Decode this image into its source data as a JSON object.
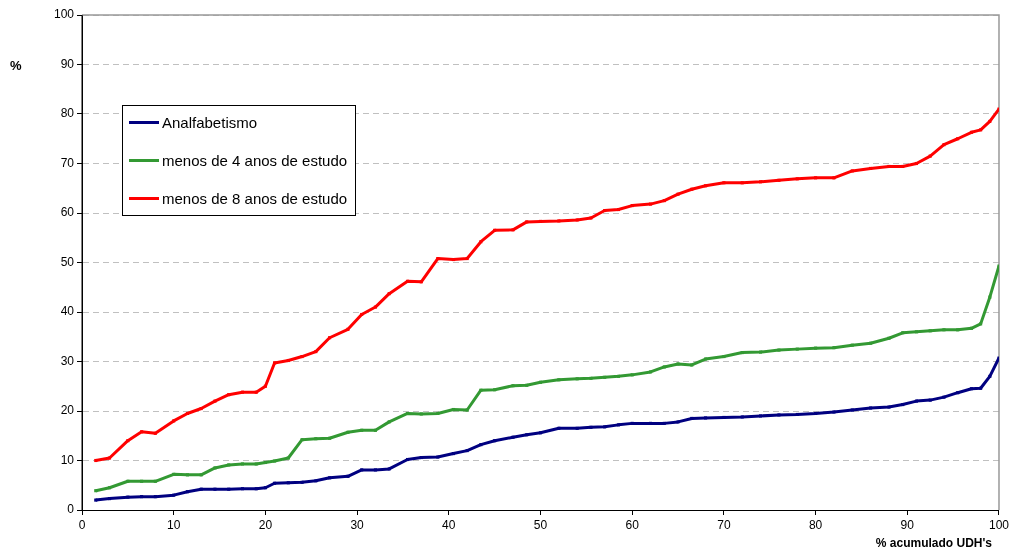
{
  "chart_data": {
    "type": "line",
    "ylabel": "%",
    "xlabel": "% acumulado UDH's",
    "x": [
      1.5,
      3,
      5,
      6.5,
      8,
      10,
      11.5,
      13,
      14.5,
      16,
      17.5,
      19,
      20,
      21,
      22.5,
      24,
      25.5,
      27,
      29,
      30.5,
      32,
      33.5,
      35.5,
      37,
      38.8,
      40.5,
      42,
      43.5,
      45,
      47,
      48.5,
      50,
      52,
      54,
      55.5,
      57,
      58.5,
      60,
      62,
      63.5,
      65,
      66.5,
      68,
      70,
      72,
      74,
      76,
      78,
      80,
      82,
      84,
      86,
      88,
      89.5,
      91,
      92.5,
      94,
      95.5,
      97,
      98,
      99,
      100
    ],
    "series": [
      {
        "name": "Analfabetismo",
        "color": "#000080",
        "values": [
          2,
          2.3,
          2.6,
          2.7,
          2.7,
          3,
          3.7,
          4.2,
          4.2,
          4.2,
          4.3,
          4.3,
          4.5,
          5.4,
          5.5,
          5.6,
          5.9,
          6.5,
          6.8,
          8.1,
          8.1,
          8.3,
          10.2,
          10.6,
          10.7,
          11.4,
          12,
          13.2,
          14,
          14.7,
          15.2,
          15.6,
          16.5,
          16.5,
          16.7,
          16.8,
          17.2,
          17.5,
          17.5,
          17.5,
          17.8,
          18.5,
          18.6,
          18.7,
          18.8,
          19,
          19.2,
          19.3,
          19.5,
          19.8,
          20.2,
          20.6,
          20.8,
          21.3,
          22,
          22.2,
          22.8,
          23.7,
          24.5,
          24.6,
          27,
          30.7
        ]
      },
      {
        "name": "menos de 4 anos de estudo",
        "color": "#339933",
        "values": [
          3.9,
          4.5,
          5.8,
          5.8,
          5.8,
          7.2,
          7.1,
          7.1,
          8.5,
          9.1,
          9.3,
          9.3,
          9.6,
          9.9,
          10.5,
          14.2,
          14.4,
          14.5,
          15.7,
          16.1,
          16.1,
          17.8,
          19.5,
          19.4,
          19.5,
          20.3,
          20.2,
          24.2,
          24.3,
          25.1,
          25.2,
          25.8,
          26.3,
          26.5,
          26.6,
          26.8,
          27,
          27.3,
          27.9,
          28.9,
          29.5,
          29.3,
          30.5,
          31,
          31.8,
          31.9,
          32.3,
          32.5,
          32.7,
          32.8,
          33.3,
          33.7,
          34.7,
          35.8,
          36,
          36.2,
          36.4,
          36.4,
          36.7,
          37.6,
          43,
          49.3
        ]
      },
      {
        "name": "menos de 8 anos de estudo",
        "color": "#ff0000",
        "values": [
          10,
          10.5,
          14,
          15.8,
          15.5,
          18,
          19.5,
          20.5,
          22,
          23.3,
          23.8,
          23.8,
          25,
          29.7,
          30.2,
          31,
          32,
          34.8,
          36.5,
          39.5,
          41,
          43.7,
          46.2,
          46.1,
          50.8,
          50.6,
          50.8,
          54.2,
          56.5,
          56.6,
          58.2,
          58.3,
          58.4,
          58.6,
          59,
          60.5,
          60.7,
          61.5,
          61.8,
          62.5,
          63.8,
          64.8,
          65.5,
          66.1,
          66.1,
          66.3,
          66.6,
          66.9,
          67.1,
          67.1,
          68.5,
          69,
          69.4,
          69.4,
          70,
          71.5,
          73.8,
          75,
          76.3,
          76.8,
          78.5,
          81
        ]
      }
    ],
    "xlim": [
      0,
      100
    ],
    "xticks": [
      0,
      10,
      20,
      30,
      40,
      50,
      60,
      70,
      80,
      90,
      100
    ],
    "ylim": [
      0,
      100
    ],
    "yticks": [
      0,
      10,
      20,
      30,
      40,
      50,
      60,
      70,
      80,
      90,
      100
    ],
    "grid": "y",
    "legend": "top left",
    "marker": "square",
    "line_style": "solid"
  }
}
